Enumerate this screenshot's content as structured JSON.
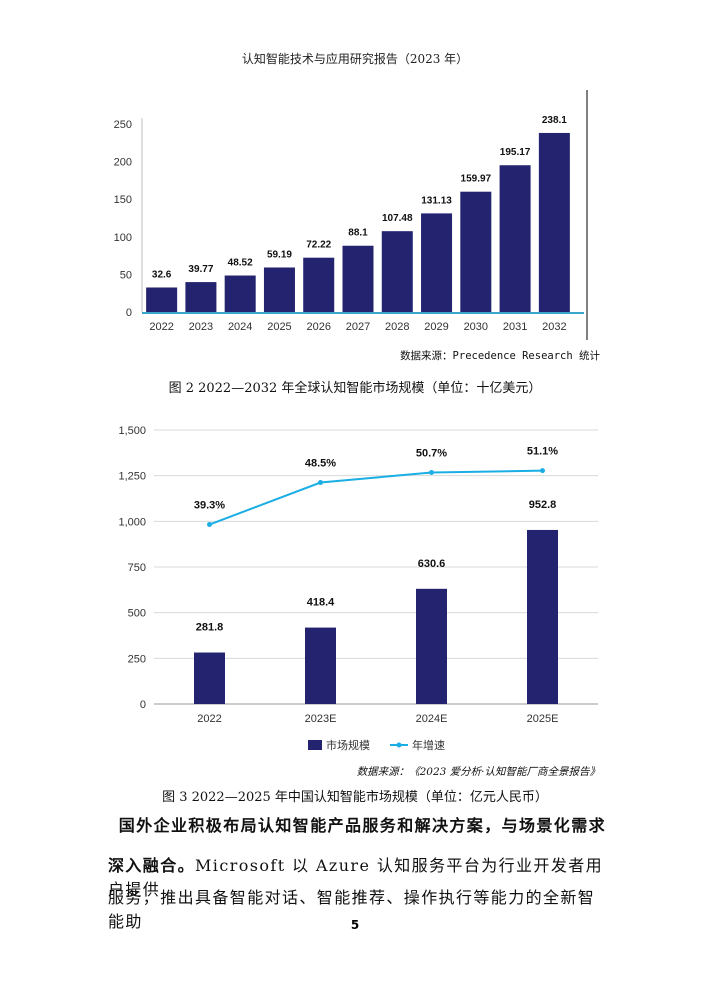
{
  "header": "认知智能技术与应用研究报告（2023 年）",
  "chart_data": [
    {
      "type": "bar",
      "categories": [
        "2022",
        "2023",
        "2024",
        "2025",
        "2026",
        "2027",
        "2028",
        "2029",
        "2030",
        "2031",
        "2032"
      ],
      "values": [
        32.6,
        39.77,
        48.52,
        59.19,
        72.22,
        88.1,
        107.48,
        131.13,
        159.97,
        195.17,
        238.1
      ],
      "value_labels": [
        "32.6",
        "39.77",
        "48.52",
        "59.19",
        "72.22",
        "88.1",
        "107.48",
        "131.13",
        "159.97",
        "195.17",
        "238.1"
      ],
      "yticks": [
        "0",
        "50",
        "100",
        "150",
        "200",
        "250"
      ],
      "ylim": [
        0,
        250
      ],
      "bar_color": "#232370",
      "axis_color": "#3aa6c9",
      "source": "数据来源：Precedence Research 统计",
      "caption": "图 2 2022—2032 年全球认知智能市场规模（单位：十亿美元）"
    },
    {
      "type": "bar+line",
      "categories": [
        "2022",
        "2023E",
        "2024E",
        "2025E"
      ],
      "series": [
        {
          "name": "市场规模",
          "type": "bar",
          "values": [
            281.8,
            418.4,
            630.6,
            952.8
          ],
          "labels": [
            "281.8",
            "418.4",
            "630.6",
            "952.8"
          ],
          "color": "#232370"
        },
        {
          "name": "年增速",
          "type": "line",
          "values": [
            39.3,
            48.5,
            50.7,
            51.1
          ],
          "labels": [
            "39.3%",
            "48.5%",
            "50.7%",
            "51.1%"
          ],
          "color": "#1aaee5"
        }
      ],
      "yticks": [
        "0",
        "250",
        "500",
        "750",
        "1,000",
        "1,250",
        "1,500"
      ],
      "ylim": [
        0,
        1500
      ],
      "source": "数据来源：《2023 爱分析·认知智能厂商全景报告》",
      "caption": "图 3 2022—2025 年中国认知智能市场规模（单位：亿元人民币）"
    }
  ],
  "body": {
    "p1": "国外企业积极布局认知智能产品服务和解决方案，与场景化需求",
    "p2_bold": "深入融合。",
    "p2": "Microsoft 以 Azure 认知服务平台为行业开发者用户提供",
    "p3": "服务，推出具备智能对话、智能推荐、操作执行等能力的全新智能助"
  },
  "page_number": "5"
}
